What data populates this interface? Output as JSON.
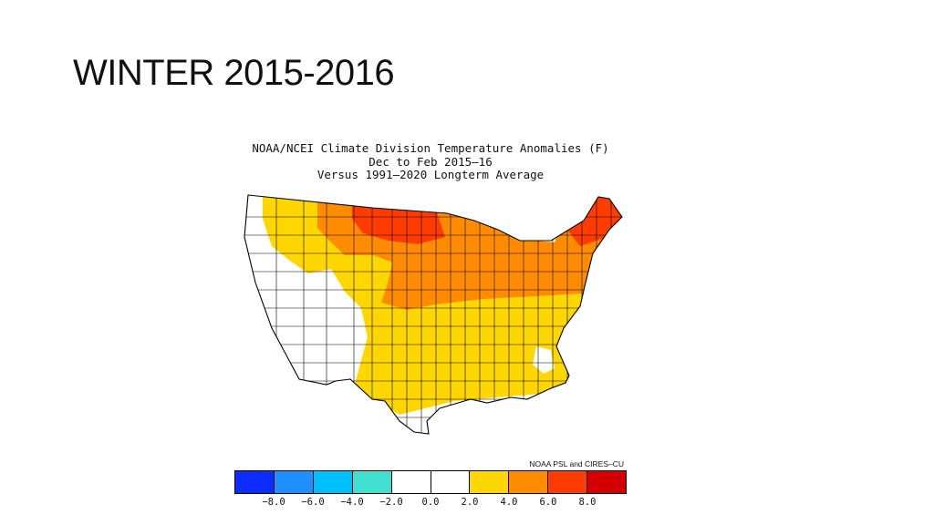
{
  "slide": {
    "title": "WINTER 2015-2016"
  },
  "map": {
    "title_lines": [
      "NOAA/NCEI Climate Division Temperature Anomalies (F)",
      "Dec to Feb 2015–16",
      "Versus 1991–2020 Longterm Average"
    ],
    "credit": "NOAA PSL and CIRES–CU",
    "colors": {
      "white": "#ffffff",
      "yellow": "#ffd700",
      "orange": "#ff8c00",
      "red_orange": "#ff3c00"
    }
  },
  "legend": {
    "colors": [
      "#0b2bff",
      "#1e90ff",
      "#00bfff",
      "#40e0d0",
      "#ffffff",
      "#ffffff",
      "#ffd700",
      "#ff8c00",
      "#ff3c00",
      "#d40000"
    ],
    "ticks": [
      "−8.0",
      "−6.0",
      "−4.0",
      "−2.0",
      "0.0",
      "2.0",
      "4.0",
      "6.0",
      "8.0"
    ]
  }
}
